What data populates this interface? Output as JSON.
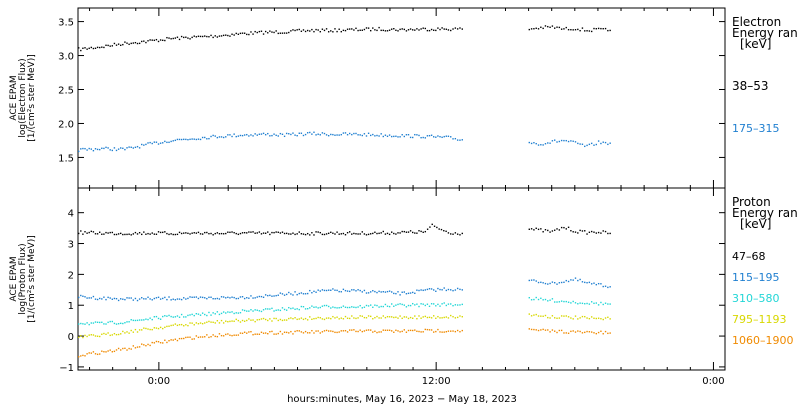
{
  "chart_data": [
    {
      "type": "scatter",
      "ylabel_lines": [
        "ACE EPAM",
        "log(Electron Flux)",
        "[1/(cm²s ster MeV)]"
      ],
      "legend_title": [
        "Electron",
        "Energy ran",
        "[keV]"
      ],
      "ylim": [
        1.05,
        3.7
      ],
      "yticks": [
        1.5,
        2.0,
        2.5,
        3.0,
        3.5
      ],
      "ytick_labels": [
        "1.5",
        "2.0",
        "2.5",
        "3.0",
        "3.5"
      ],
      "series": [
        {
          "name": "38–53",
          "color": "#000000",
          "segments": [
            {
              "x": [
                -3.5,
                -2.5,
                -1.5,
                -0.5,
                0.5,
                1.5,
                2.5,
                3.5,
                4.5,
                5.5,
                6.5,
                7.5,
                8.5,
                9.5,
                10.5,
                11.5,
                12.5,
                13.1
              ],
              "y": [
                3.1,
                3.14,
                3.19,
                3.22,
                3.26,
                3.28,
                3.3,
                3.33,
                3.35,
                3.36,
                3.38,
                3.38,
                3.39,
                3.4,
                3.39,
                3.4,
                3.4,
                3.4
              ]
            },
            {
              "x": [
                16.0,
                16.5,
                17.0,
                17.5,
                18.0,
                18.5,
                19.0,
                19.5
              ],
              "y": [
                3.4,
                3.42,
                3.43,
                3.4,
                3.41,
                3.38,
                3.39,
                3.38
              ]
            }
          ]
        },
        {
          "name": "175–315",
          "color": "#1f7fd0",
          "segments": [
            {
              "x": [
                -3.5,
                -2.5,
                -1.5,
                -0.5,
                0.5,
                1.5,
                2.5,
                3.5,
                4.5,
                5.5,
                6.5,
                7.5,
                8.5,
                9.5,
                10.5,
                11.5,
                12.5,
                13.1
              ],
              "y": [
                1.62,
                1.64,
                1.63,
                1.7,
                1.76,
                1.79,
                1.82,
                1.84,
                1.85,
                1.84,
                1.86,
                1.85,
                1.85,
                1.84,
                1.83,
                1.82,
                1.8,
                1.77
              ]
            },
            {
              "x": [
                16.0,
                16.5,
                17.0,
                17.5,
                18.0,
                18.5,
                19.0,
                19.5
              ],
              "y": [
                1.73,
                1.71,
                1.74,
                1.76,
                1.72,
                1.67,
                1.73,
                1.72
              ]
            }
          ]
        }
      ]
    },
    {
      "type": "scatter",
      "ylabel_lines": [
        "ACE EPAM",
        "log(Proton Flux)",
        "[1/(cm²s ster MeV)]"
      ],
      "legend_title": [
        "Proton",
        "Energy ran",
        "[keV]"
      ],
      "ylim": [
        -1.1,
        4.8
      ],
      "yticks": [
        -1,
        0,
        1,
        2,
        3,
        4
      ],
      "ytick_labels": [
        "−1",
        "0",
        "1",
        "2",
        "3",
        "4"
      ],
      "series": [
        {
          "name": "47–68",
          "color": "#000000",
          "segments": [
            {
              "x": [
                -3.5,
                -2.5,
                -1.5,
                -0.5,
                0.5,
                1.5,
                2.5,
                3.5,
                4.5,
                5.5,
                6.5,
                7.5,
                8.5,
                9.5,
                10.5,
                11.5,
                11.8,
                12.5,
                13.1
              ],
              "y": [
                3.38,
                3.36,
                3.35,
                3.36,
                3.35,
                3.36,
                3.35,
                3.36,
                3.35,
                3.36,
                3.35,
                3.36,
                3.35,
                3.36,
                3.38,
                3.4,
                3.6,
                3.38,
                3.35
              ]
            },
            {
              "x": [
                16.0,
                16.5,
                17.0,
                17.5,
                18.0,
                18.5,
                19.0,
                19.5
              ],
              "y": [
                3.5,
                3.45,
                3.4,
                3.55,
                3.42,
                3.38,
                3.4,
                3.35
              ]
            }
          ]
        },
        {
          "name": "115–195",
          "color": "#1f7fd0",
          "segments": [
            {
              "x": [
                -3.5,
                -2.5,
                -1.5,
                -0.5,
                0.5,
                1.5,
                2.5,
                3.5,
                4.5,
                5.5,
                6.5,
                7.5,
                8.5,
                9.5,
                10.5,
                11.5,
                12.5,
                13.1
              ],
              "y": [
                1.3,
                1.25,
                1.22,
                1.23,
                1.24,
                1.24,
                1.26,
                1.28,
                1.32,
                1.38,
                1.45,
                1.5,
                1.48,
                1.45,
                1.4,
                1.5,
                1.55,
                1.52
              ]
            },
            {
              "x": [
                16.0,
                16.5,
                17.0,
                17.5,
                18.0,
                18.5,
                19.0,
                19.5
              ],
              "y": [
                1.82,
                1.78,
                1.72,
                1.8,
                1.85,
                1.74,
                1.68,
                1.62
              ]
            }
          ]
        },
        {
          "name": "310–580",
          "color": "#22d6d6",
          "segments": [
            {
              "x": [
                -3.5,
                -2.5,
                -1.5,
                -0.5,
                0.5,
                1.5,
                2.5,
                3.5,
                4.5,
                5.5,
                6.5,
                7.5,
                8.5,
                9.5,
                10.5,
                11.5,
                12.5,
                13.1
              ],
              "y": [
                0.45,
                0.42,
                0.48,
                0.58,
                0.65,
                0.7,
                0.76,
                0.82,
                0.86,
                0.9,
                0.95,
                0.98,
                0.97,
                1.0,
                1.02,
                1.03,
                1.05,
                1.05
              ]
            },
            {
              "x": [
                16.0,
                16.5,
                17.0,
                17.5,
                18.0,
                18.5,
                19.0,
                19.5
              ],
              "y": [
                1.25,
                1.2,
                1.18,
                1.15,
                1.12,
                1.1,
                1.08,
                1.06
              ]
            }
          ]
        },
        {
          "name": "795–1193",
          "color": "#d8d800",
          "segments": [
            {
              "x": [
                -3.5,
                -2.5,
                -1.5,
                -0.5,
                0.5,
                1.5,
                2.5,
                3.5,
                4.5,
                5.5,
                6.5,
                7.5,
                8.5,
                9.5,
                10.5,
                11.5,
                12.5,
                13.1
              ],
              "y": [
                -0.02,
                0.05,
                0.15,
                0.25,
                0.35,
                0.42,
                0.48,
                0.52,
                0.55,
                0.58,
                0.6,
                0.62,
                0.63,
                0.62,
                0.64,
                0.63,
                0.65,
                0.65
              ]
            },
            {
              "x": [
                16.0,
                16.5,
                17.0,
                17.5,
                18.0,
                18.5,
                19.0,
                19.5
              ],
              "y": [
                0.72,
                0.68,
                0.65,
                0.64,
                0.62,
                0.6,
                0.58,
                0.58
              ]
            }
          ]
        },
        {
          "name": "1060–1900",
          "color": "#f08a00",
          "segments": [
            {
              "x": [
                -3.5,
                -2.5,
                -1.5,
                -0.5,
                0.5,
                1.5,
                2.5,
                3.5,
                4.5,
                5.5,
                6.5,
                7.5,
                8.5,
                9.5,
                10.5,
                11.5,
                12.5,
                13.1
              ],
              "y": [
                -0.6,
                -0.5,
                -0.4,
                -0.25,
                -0.12,
                -0.02,
                0.05,
                0.1,
                0.13,
                0.14,
                0.15,
                0.16,
                0.18,
                0.18,
                0.18,
                0.19,
                0.2,
                0.2
              ]
            },
            {
              "x": [
                16.0,
                16.5,
                17.0,
                17.5,
                18.0,
                18.5,
                19.0,
                19.5
              ],
              "y": [
                0.22,
                0.2,
                0.18,
                0.17,
                0.15,
                0.14,
                0.13,
                0.12
              ]
            }
          ]
        }
      ]
    }
  ],
  "x_axis": {
    "label": "hours:minutes, May 16, 2023 − May 18, 2023",
    "xlim": [
      -3.5,
      24.5
    ],
    "ticks": [
      0,
      12,
      24
    ],
    "tick_labels": [
      "0:00",
      "12:00",
      "0:00"
    ],
    "minor_step": 1
  }
}
